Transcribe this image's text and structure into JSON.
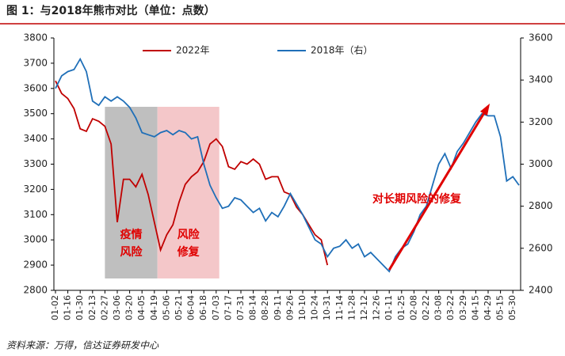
{
  "chart_data": {
    "type": "line",
    "title": "图 1：与2018年熊市对比（单位：点数）",
    "source": "资料来源：万得，信达证券研发中心",
    "categories": [
      "01-02",
      null,
      "01-16",
      null,
      "01-30",
      null,
      "02-13",
      null,
      "02-27",
      null,
      "03-06",
      null,
      "03-20",
      null,
      "04-05",
      null,
      "04-19",
      null,
      "05-06",
      null,
      "05-21",
      null,
      "06-04",
      null,
      "06-18",
      null,
      "07-03",
      null,
      "07-17",
      null,
      "07-31",
      null,
      "08-14",
      null,
      "08-28",
      null,
      "09-11",
      null,
      "09-26",
      null,
      "10-10",
      null,
      "10-24",
      null,
      "10-31",
      null,
      "11-14",
      null,
      "11-28",
      null,
      "12-12",
      null,
      "12-26",
      null,
      "01-11",
      null,
      "01-25",
      null,
      "02-08",
      null,
      "02-22",
      null,
      "03-08",
      null,
      "03-22",
      null,
      "03-29",
      null,
      "04-15",
      null,
      "04-29",
      null,
      "05-15",
      null,
      "05-30",
      null
    ],
    "series": [
      {
        "name": "2022年",
        "color": "#c00000",
        "axis": "y",
        "values": [
          3630,
          3580,
          3560,
          3520,
          3440,
          3430,
          3480,
          3470,
          3450,
          3380,
          3070,
          3240,
          3240,
          3210,
          3260,
          3180,
          3070,
          2960,
          3020,
          3060,
          3150,
          3220,
          3250,
          3270,
          3310,
          3380,
          3400,
          3370,
          3290,
          3280,
          3310,
          3300,
          3320,
          3300,
          3240,
          3250,
          3250,
          3190,
          3180,
          3130,
          3100,
          3060,
          3020,
          3000,
          2900,
          null,
          null,
          null,
          null,
          null,
          null,
          null,
          null,
          null,
          null,
          null,
          null,
          null,
          null,
          null,
          null,
          null,
          null,
          null,
          null,
          null,
          null,
          null,
          null,
          null,
          null,
          null,
          null,
          null,
          null,
          null
        ]
      },
      {
        "name": "2018年（右）",
        "color": "#1f6fb8",
        "axis": "y2",
        "values": [
          3360,
          3420,
          3440,
          3450,
          3500,
          3440,
          3300,
          3280,
          3320,
          3300,
          3320,
          3300,
          3270,
          3220,
          3150,
          3140,
          3130,
          3150,
          3160,
          3140,
          3160,
          3150,
          3120,
          3130,
          3000,
          2900,
          2840,
          2790,
          2800,
          2840,
          2830,
          2800,
          2770,
          2790,
          2730,
          2770,
          2750,
          2800,
          2860,
          2810,
          2760,
          2700,
          2640,
          2620,
          2560,
          2600,
          2610,
          2640,
          2600,
          2620,
          2560,
          2580,
          2550,
          2520,
          2490,
          2560,
          2600,
          2620,
          2680,
          2760,
          2800,
          2900,
          3000,
          3050,
          2980,
          3060,
          3100,
          3150,
          3200,
          3240,
          3230,
          3230,
          3130,
          2920,
          2940,
          2900
        ]
      }
    ],
    "ylim": [
      2800,
      3800
    ],
    "yticks": [
      2800,
      2900,
      3000,
      3100,
      3200,
      3300,
      3400,
      3500,
      3600,
      3700,
      3800
    ],
    "y2lim": [
      2400,
      3600
    ],
    "y2ticks": [
      2400,
      2600,
      2800,
      3000,
      3200,
      3400,
      3600
    ],
    "legend": "top",
    "regions": [
      {
        "label": [
          "疫情",
          "风险"
        ],
        "from": 8,
        "to": 16.5,
        "color": "#bfbfbf"
      },
      {
        "label": [
          "风险",
          "修复"
        ],
        "from": 16.5,
        "to": 26.5,
        "color": "#f4c7c9"
      }
    ],
    "arrow": {
      "label": "对长期风险的修复",
      "from": 54,
      "to": 70,
      "color": "#e00000"
    }
  }
}
